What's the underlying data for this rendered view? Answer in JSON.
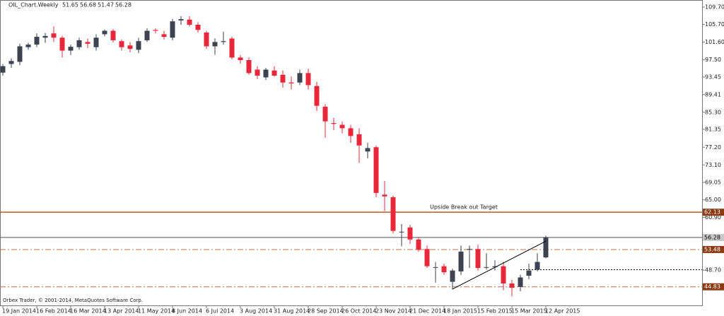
{
  "chart_data": {
    "type": "candlestick",
    "title": "OIL_Chart.Weekly",
    "copyright": "Orbex Trader, © 2001-2014, MetaQuotes Software Corp.",
    "x": [
      "19 Jan 2014",
      null,
      null,
      null,
      "16 Feb 2014",
      null,
      null,
      null,
      "16 Mar 2014",
      null,
      null,
      null,
      "13 Apr 2014",
      null,
      null,
      null,
      "11 May 2014",
      null,
      null,
      null,
      "8 Jun 2014",
      null,
      null,
      null,
      "6 Jul 2014",
      null,
      null,
      null,
      "3 Aug 2014",
      null,
      null,
      null,
      "31 Aug 2014",
      null,
      null,
      null,
      "28 Sep 2014",
      null,
      null,
      null,
      "26 Oct 2014",
      null,
      null,
      null,
      "23 Nov 2014",
      null,
      null,
      null,
      "21 Dec 2014",
      null,
      null,
      null,
      "18 Jan 2015",
      null,
      null,
      null,
      "15 Feb 2015",
      null,
      null,
      null,
      "15 Mar 2015",
      null,
      null,
      null,
      "12 Apr 2015"
    ],
    "open": [
      94.5,
      96.5,
      97.0,
      100.4,
      101.0,
      102.6,
      103.6,
      102.6,
      99.6,
      100.4,
      101.6,
      100.4,
      103.4,
      104.2,
      101.8,
      100.8,
      99.8,
      102.0,
      104.4,
      103.4,
      102.6,
      106.6,
      106.8,
      105.6,
      103.8,
      100.6,
      101.6,
      102.4,
      98.0,
      97.4,
      95.2,
      93.4,
      95.0,
      94.0,
      92.2,
      92.2,
      94.4,
      91.4,
      86.6,
      82.8,
      82.4,
      81.6,
      80.2,
      76.2,
      77.2,
      66.2,
      65.6,
      57.6,
      58.6,
      55.8,
      53.6,
      49.4,
      49.6,
      46.0,
      48.4,
      53.4,
      53.6,
      49.4,
      49.4,
      49.6,
      45.6,
      44.8,
      47.4,
      48.8,
      51.65
    ],
    "high": [
      96.5,
      97.8,
      101.2,
      101.4,
      103.6,
      103.7,
      105.2,
      103.0,
      101.0,
      102.6,
      102.4,
      103.4,
      104.5,
      104.6,
      102.2,
      101.6,
      102.6,
      104.8,
      104.8,
      104.2,
      107.0,
      107.6,
      107.6,
      106.2,
      104.2,
      102.4,
      104.0,
      102.8,
      98.6,
      98.0,
      96.0,
      95.6,
      96.0,
      95.0,
      93.6,
      95.2,
      95.4,
      92.4,
      87.2,
      84.0,
      83.2,
      82.4,
      81.6,
      78.2,
      77.6,
      69.4,
      66.0,
      59.4,
      59.2,
      56.4,
      54.4,
      50.6,
      50.2,
      49.0,
      54.4,
      54.4,
      54.6,
      52.6,
      51.0,
      50.6,
      46.4,
      47.6,
      50.2,
      52.6,
      56.68
    ],
    "low": [
      93.8,
      95.6,
      96.2,
      99.8,
      100.4,
      101.4,
      101.6,
      98.0,
      98.6,
      99.8,
      100.2,
      99.6,
      102.9,
      101.5,
      99.6,
      99.2,
      99.0,
      101.6,
      103.6,
      102.2,
      102.0,
      105.6,
      105.2,
      103.8,
      100.0,
      98.6,
      101.0,
      97.6,
      96.6,
      94.0,
      93.0,
      92.8,
      93.6,
      91.0,
      90.6,
      91.6,
      90.6,
      85.6,
      79.4,
      81.2,
      80.4,
      78.2,
      73.6,
      74.6,
      65.6,
      62.4,
      57.2,
      54.2,
      54.8,
      53.0,
      49.2,
      45.8,
      47.6,
      44.2,
      47.6,
      49.2,
      48.6,
      48.8,
      48.6,
      44.0,
      42.6,
      43.8,
      46.6,
      48.4,
      51.47
    ],
    "close": [
      96.0,
      97.2,
      100.6,
      101.0,
      102.8,
      103.0,
      102.6,
      99.6,
      100.5,
      102.0,
      101.2,
      102.6,
      104.2,
      102.0,
      100.4,
      100.0,
      101.8,
      104.2,
      104.2,
      102.8,
      106.4,
      106.9,
      105.6,
      104.4,
      100.6,
      101.6,
      101.8,
      98.0,
      97.4,
      94.4,
      93.8,
      95.2,
      93.8,
      92.2,
      92.0,
      94.4,
      91.6,
      86.8,
      83.2,
      82.6,
      81.6,
      79.8,
      77.6,
      77.0,
      66.6,
      65.8,
      57.8,
      57.6,
      55.8,
      53.4,
      49.6,
      49.4,
      48.2,
      48.6,
      53.0,
      53.6,
      49.2,
      49.4,
      49.6,
      45.6,
      44.6,
      47.0,
      48.6,
      50.6,
      56.28
    ],
    "up_color": "#3d4450",
    "down_color": "#e8283a",
    "ylim": [
      40.52,
      111.34
    ],
    "yticks": [
      {
        "value": 109.7,
        "label": "109.70"
      },
      {
        "value": 105.7,
        "label": "105.70"
      },
      {
        "value": 101.6,
        "label": "101.60"
      },
      {
        "value": 97.5,
        "label": "97.50"
      },
      93.45,
      89.41,
      {
        "value": 85.3,
        "label": "85.30"
      },
      81.35,
      {
        "value": 77.2,
        "label": "77.20"
      },
      {
        "value": 73.1,
        "label": "73.10"
      },
      69.05,
      {
        "value": 65.0,
        "label": "65.00"
      },
      {
        "value": 60.9,
        "label": "60.90"
      },
      {
        "value": 48.7,
        "label": "48.70"
      }
    ],
    "levels": [
      {
        "value": 62.13,
        "color": "#c0582a",
        "style": "solid",
        "label_bg": "#8b3a12"
      },
      {
        "value": 56.28,
        "color": "#555555",
        "style": "solid",
        "label_bg": "#c8c8c8"
      },
      {
        "value": 53.48,
        "color": "#c07050",
        "style": "dashdot",
        "label_bg": "#8b3a12"
      },
      {
        "value": 44.83,
        "color": "#c07050",
        "style": "dashdot",
        "label_bg": "#8b3a12"
      }
    ],
    "annotation": "Upside Break out Target",
    "trendline": {
      "from": [
        53,
        44.3
      ],
      "to": [
        64,
        55.4
      ]
    },
    "dotted_level": {
      "value": 48.8,
      "start": 61
    }
  }
}
